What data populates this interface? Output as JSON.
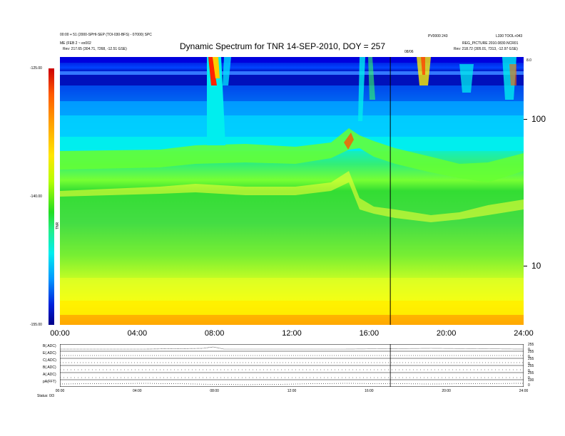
{
  "chart_data": {
    "type": "heatmap",
    "title": "Dynamic Spectrum for TNR 14-SEP-2010, DOY = 257",
    "x_tick_labels": [
      "00:00",
      "04:00",
      "08:00",
      "12:00",
      "16:00",
      "20:00",
      "24:00"
    ],
    "x_range_hours": [
      0,
      24
    ],
    "y_right_tick_labels": [
      "100",
      "10"
    ],
    "colorbar": {
      "tick_labels": [
        "-125.00",
        "-140.00",
        "-155.00"
      ],
      "range": [
        -155,
        -125
      ],
      "label": "TNR"
    },
    "marker_line_hour": 17.1,
    "marker_label": "08/06",
    "header": {
      "left_line1": "00:00 + 51 (2000-SPHI-SEP (TOI-030-BFS) - 07000) SPC",
      "left_line2": "ME (FEB 2 ~ ex002",
      "left_line3": "Rev: 217.65 (304.71, 7268, -12.51 GSE)",
      "right_line1": "PV0000 243",
      "right_line1b": "L330 TOOL+043",
      "right_line2": "REG_PICTURE 2010.0830.NCR01",
      "right_line3": "Rev: 218.72 (305.01, 7313, -12.97 GSE)",
      "corner_tag": "8.0"
    },
    "strip_panel": {
      "left_labels": [
        "B(.ADC)",
        "E(.ADC)",
        "C(.ADC)",
        "B(.ADC)",
        "A(.ADC)",
        "pA(FFT)"
      ],
      "right_labels": [
        "255",
        "0",
        "255",
        "0",
        "255",
        "0",
        "255",
        "0",
        "255",
        "0",
        "100",
        "0"
      ],
      "time_labels": [
        "00:00",
        "04:00",
        "08:00",
        "12:00",
        "16:00",
        "20:00",
        "24:00"
      ],
      "footer_label": "Status: 0/3"
    }
  }
}
